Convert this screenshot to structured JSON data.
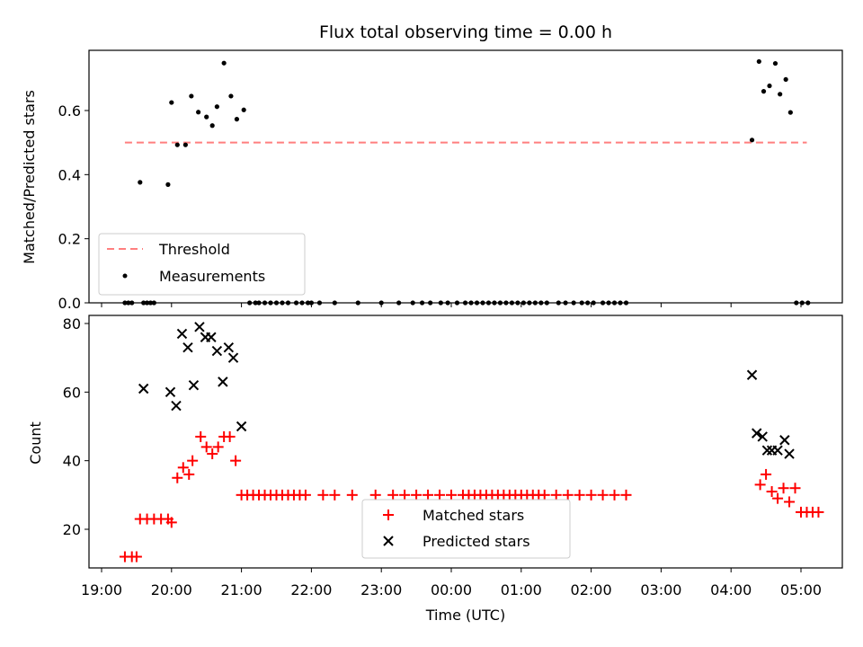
{
  "chart_data": [
    {
      "type": "scatter",
      "title": "Flux total observing time = 0.00 h",
      "xlabel": "",
      "ylabel": "Matched/Predicted stars",
      "ylim": [
        0,
        0.78
      ],
      "yticks": [
        "0.0",
        "0.2",
        "0.4",
        "0.6"
      ],
      "legend_position": "lower-left",
      "colors": {
        "threshold": "#ff7f7f",
        "measurements": "#000000"
      },
      "series": [
        {
          "name": "Threshold",
          "style": "dashed-line",
          "x": [
            "19:20",
            "05:05"
          ],
          "y": [
            0.5,
            0.5
          ]
        },
        {
          "name": "Measurements",
          "style": "dot",
          "x": [
            "19:20",
            "19:23",
            "19:26",
            "19:33",
            "19:36",
            "19:39",
            "19:42",
            "19:45",
            "19:57",
            "20:00",
            "20:05",
            "20:12",
            "20:17",
            "20:23",
            "20:30",
            "20:35",
            "20:39",
            "20:45",
            "20:51",
            "20:56",
            "21:02",
            "21:07",
            "21:12",
            "21:15",
            "21:20",
            "21:25",
            "21:30",
            "21:35",
            "21:40",
            "21:47",
            "21:52",
            "21:57",
            "22:00",
            "22:07",
            "22:20",
            "22:40",
            "23:00",
            "23:15",
            "23:27",
            "23:35",
            "23:42",
            "23:51",
            "23:57",
            "00:05",
            "00:12",
            "00:17",
            "00:22",
            "00:27",
            "00:32",
            "00:37",
            "00:42",
            "00:47",
            "00:52",
            "00:57",
            "01:02",
            "01:07",
            "01:12",
            "01:17",
            "01:22",
            "01:32",
            "01:38",
            "01:45",
            "01:52",
            "01:57",
            "02:02",
            "02:10",
            "02:15",
            "02:20",
            "02:25",
            "02:30",
            "04:18",
            "04:24",
            "04:28",
            "04:33",
            "04:38",
            "04:42",
            "04:47",
            "04:51",
            "04:56",
            "05:01",
            "05:06"
          ],
          "y": [
            0,
            0,
            0,
            0.376,
            0,
            0,
            0,
            0,
            0.369,
            0.625,
            0.493,
            0.493,
            0.645,
            0.595,
            0.58,
            0.553,
            0.612,
            0.748,
            0.645,
            0.573,
            0.602,
            0,
            0,
            0,
            0,
            0,
            0,
            0,
            0,
            0,
            0,
            0,
            0,
            0,
            0,
            0,
            0,
            0,
            0,
            0,
            0,
            0,
            0,
            0,
            0,
            0,
            0,
            0,
            0,
            0,
            0,
            0,
            0,
            0,
            0,
            0,
            0,
            0,
            0,
            0,
            0,
            0,
            0,
            0,
            0,
            0,
            0,
            0,
            0,
            0,
            0.508,
            0.753,
            0.66,
            0.677,
            0.747,
            0.651,
            0.697,
            0.594,
            0,
            0,
            0
          ]
        }
      ]
    },
    {
      "type": "scatter",
      "title": "",
      "xlabel": "Time (UTC)",
      "ylabel": "Count",
      "ylim": [
        8,
        82
      ],
      "yticks": [
        "20",
        "40",
        "60",
        "80"
      ],
      "xticks": [
        "19:00",
        "20:00",
        "21:00",
        "22:00",
        "23:00",
        "00:00",
        "01:00",
        "02:00",
        "03:00",
        "04:00",
        "05:00"
      ],
      "legend_position": "lower-center",
      "colors": {
        "matched": "#ff0000",
        "predicted": "#000000"
      },
      "series": [
        {
          "name": "Matched stars",
          "marker": "+",
          "x": [
            "19:20",
            "19:26",
            "19:30",
            "19:33",
            "19:39",
            "19:45",
            "19:51",
            "19:57",
            "20:00",
            "20:05",
            "20:10",
            "20:15",
            "20:18",
            "20:25",
            "20:30",
            "20:35",
            "20:40",
            "20:45",
            "20:50",
            "20:55",
            "21:00",
            "21:05",
            "21:10",
            "21:15",
            "21:20",
            "21:25",
            "21:30",
            "21:35",
            "21:40",
            "21:45",
            "21:50",
            "21:55",
            "22:10",
            "22:20",
            "22:35",
            "22:55",
            "23:10",
            "23:20",
            "23:30",
            "23:40",
            "23:50",
            "00:00",
            "00:10",
            "00:15",
            "00:20",
            "00:25",
            "00:30",
            "00:35",
            "00:40",
            "00:45",
            "00:50",
            "00:55",
            "01:00",
            "01:05",
            "01:10",
            "01:15",
            "01:20",
            "01:30",
            "01:40",
            "01:50",
            "02:00",
            "02:10",
            "02:20",
            "02:30",
            "04:25",
            "04:30",
            "04:35",
            "04:40",
            "04:45",
            "04:50",
            "04:55",
            "05:00",
            "05:05",
            "05:10",
            "05:15"
          ],
          "y": [
            12,
            12,
            12,
            23,
            23,
            23,
            23,
            23,
            22,
            35,
            38,
            36,
            40,
            47,
            44,
            42,
            44,
            47,
            47,
            40,
            30,
            30,
            30,
            30,
            30,
            30,
            30,
            30,
            30,
            30,
            30,
            30,
            30,
            30,
            30,
            30,
            30,
            30,
            30,
            30,
            30,
            30,
            30,
            30,
            30,
            30,
            30,
            30,
            30,
            30,
            30,
            30,
            30,
            30,
            30,
            30,
            30,
            30,
            30,
            30,
            30,
            30,
            30,
            30,
            33,
            36,
            31,
            29,
            32,
            28,
            32,
            25,
            25,
            25,
            25
          ]
        },
        {
          "name": "Predicted stars",
          "marker": "x",
          "x": [
            "19:36",
            "19:59",
            "20:04",
            "20:09",
            "20:14",
            "20:19",
            "20:24",
            "20:29",
            "20:34",
            "20:39",
            "20:44",
            "20:49",
            "20:53",
            "21:00",
            "04:18",
            "04:22",
            "04:27",
            "04:31",
            "04:35",
            "04:40",
            "04:46",
            "04:50"
          ],
          "y": [
            61,
            60,
            56,
            77,
            73,
            62,
            79,
            76,
            76,
            72,
            63,
            73,
            70,
            50,
            65,
            48,
            47,
            43,
            43,
            43,
            46,
            42
          ]
        }
      ]
    }
  ]
}
